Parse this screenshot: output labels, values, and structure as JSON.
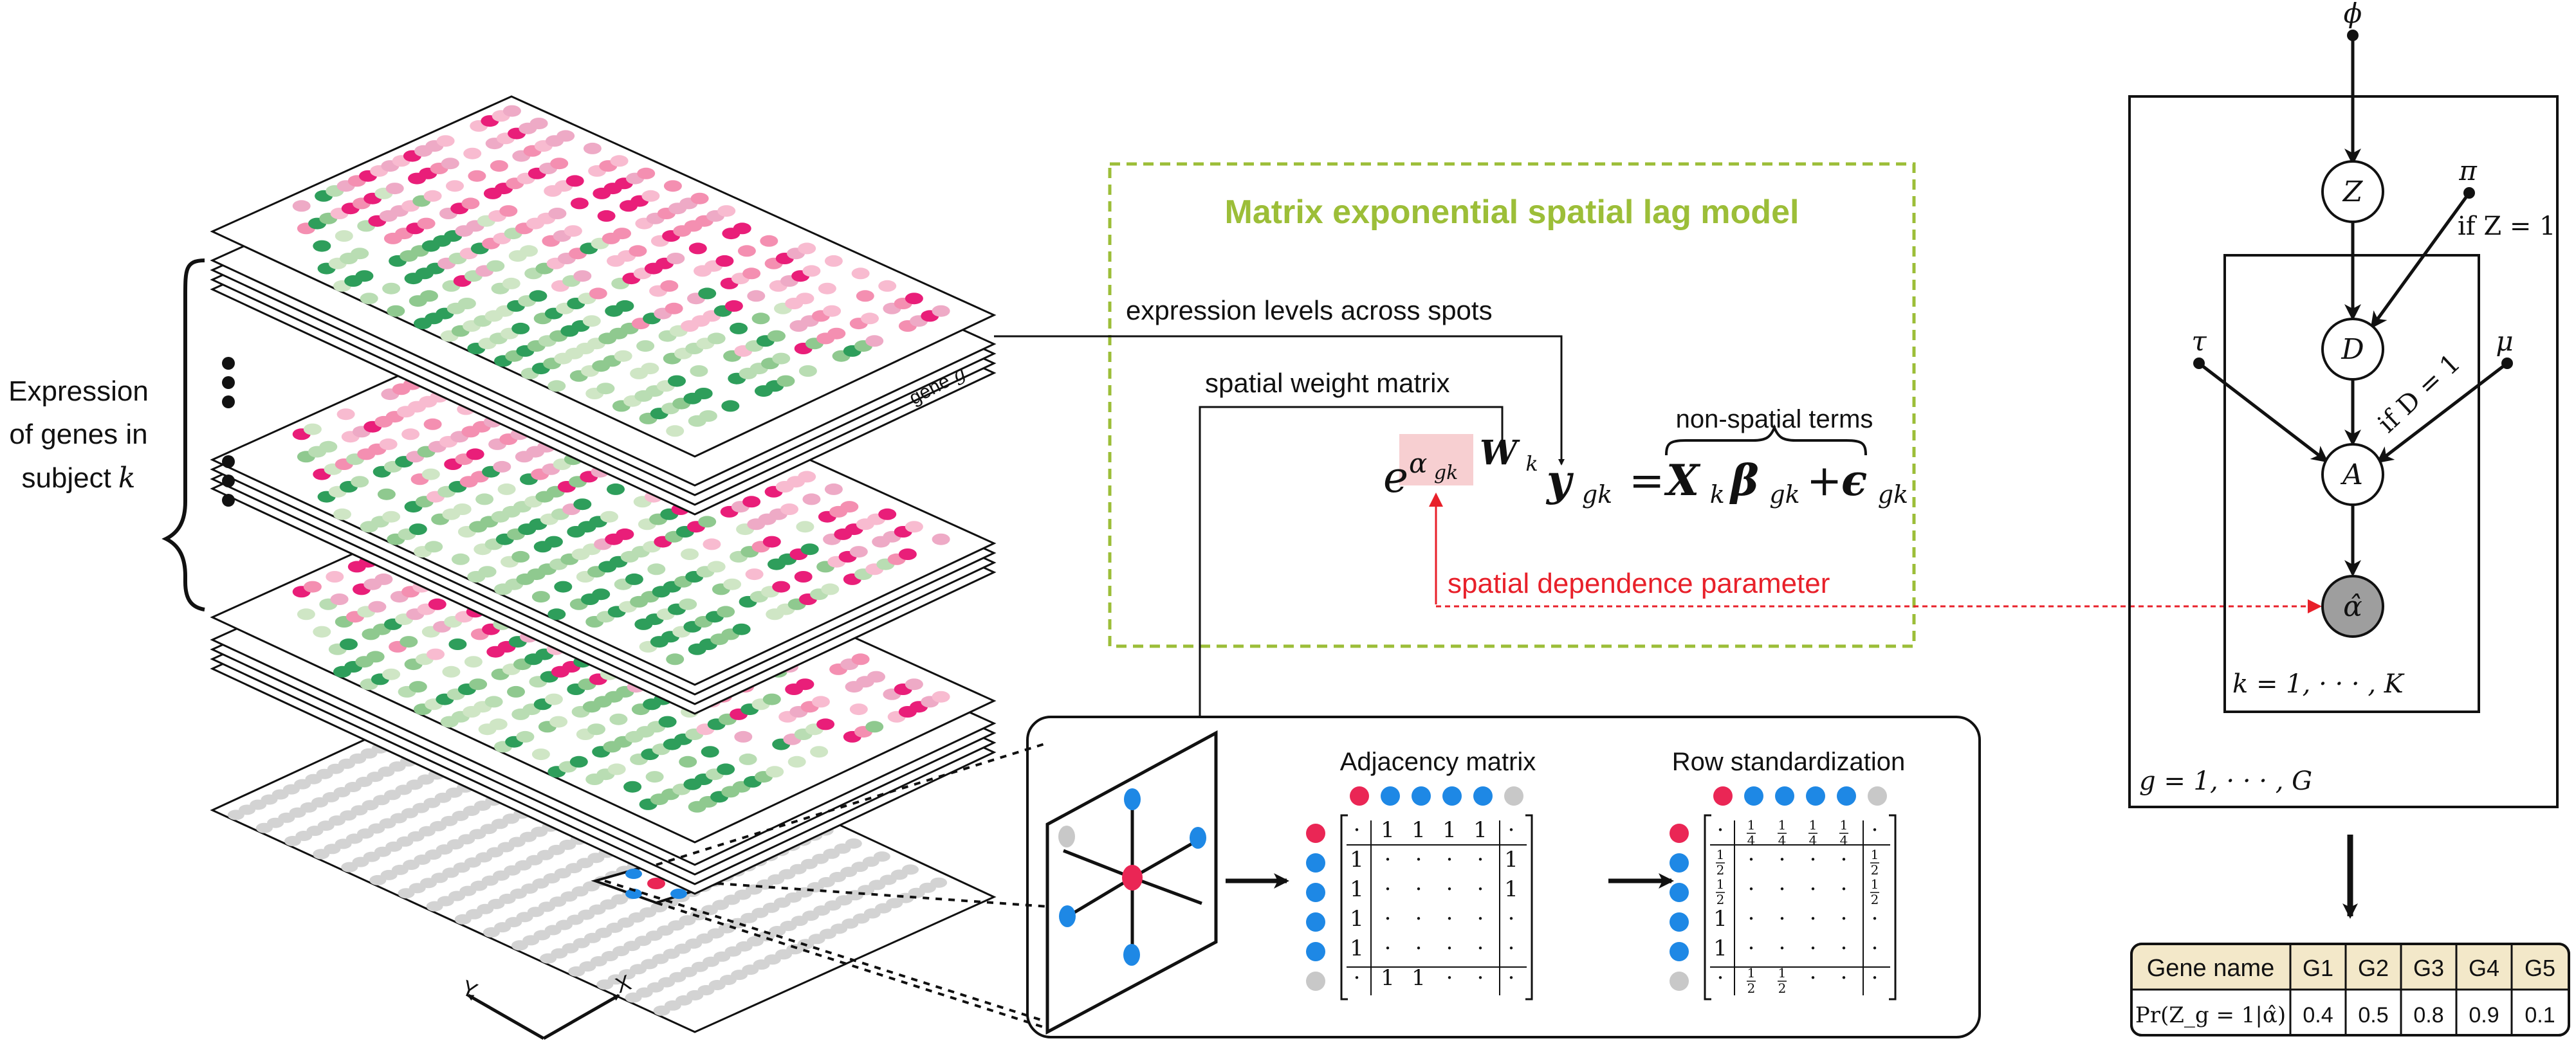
{
  "left": {
    "brace_label_line1": "Expression",
    "brace_label_line2": "of genes in",
    "brace_label_line3": "subject",
    "brace_label_var": "k",
    "gene_tag": "gene",
    "gene_tag_sub": "g",
    "axis_x": "X",
    "axis_y": "Y"
  },
  "model": {
    "title": "Matrix exponential spatial lag model",
    "title_color": "#9cbe38",
    "label_expression": "expression levels across spots",
    "label_weight": "spatial weight matrix",
    "label_nonspatial": "non-spatial terms",
    "label_dependence": "spatial dependence parameter",
    "dependence_color": "#e8202a",
    "eq_e": "e",
    "eq_alpha": "α",
    "eq_alpha_sub": "gk",
    "eq_W": "W",
    "eq_W_sub": "k",
    "eq_y": "y",
    "eq_y_sub": "gk",
    "eq_equals": "=",
    "eq_X": "X",
    "eq_X_sub": "k",
    "eq_beta": "β",
    "eq_beta_sub": "gk",
    "eq_plus": "+",
    "eq_eps": "ϵ",
    "eq_eps_sub": "gk"
  },
  "inset": {
    "adjacency_title": "Adjacency matrix",
    "row_title": "Row standardization",
    "dot": "·",
    "one": "1",
    "quarter": "1/4",
    "half": "1/2",
    "red_color": "#ea2655",
    "blue_color": "#1e88e5",
    "gray_color": "#c8c8c8"
  },
  "graph": {
    "phi": "ϕ",
    "pi": "π",
    "tau": "τ",
    "mu": "μ",
    "node_Z": "Z",
    "node_D": "D",
    "node_A": "A",
    "node_alpha": "α̂",
    "if_Z": "if Z = 1",
    "if_D": "if D = 1",
    "plate_k": "k = 1, · · · , K",
    "plate_g": "g = 1, · · · , G"
  },
  "table": {
    "header_label": "Gene name",
    "row_label": "Pr(Z_g = 1|α̂)",
    "genes": [
      "G1",
      "G2",
      "G3",
      "G4",
      "G5"
    ],
    "values": [
      "0.4",
      "0.5",
      "0.8",
      "0.9",
      "0.1"
    ],
    "header_bg": "#f3e8c9"
  }
}
